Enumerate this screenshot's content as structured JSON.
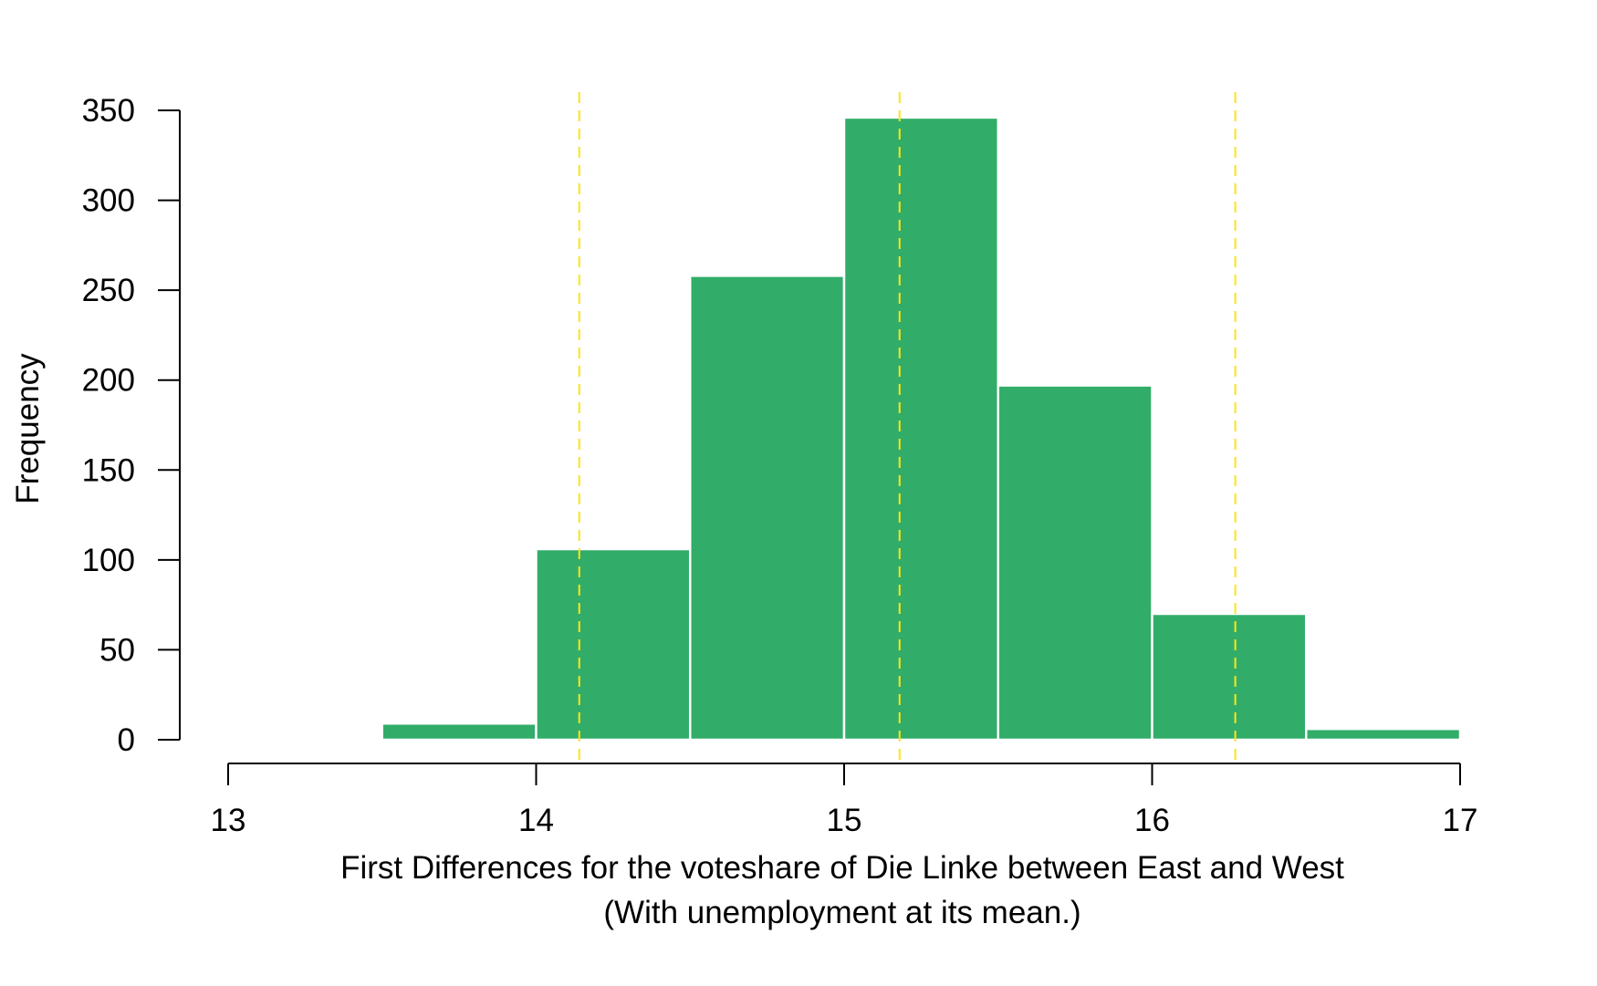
{
  "chart_data": {
    "type": "bar",
    "subtype": "histogram",
    "bins": [
      {
        "from": 13.5,
        "to": 14.0,
        "value": 9
      },
      {
        "from": 14.0,
        "to": 14.5,
        "value": 106
      },
      {
        "from": 14.5,
        "to": 15.0,
        "value": 258
      },
      {
        "from": 15.0,
        "to": 15.5,
        "value": 346
      },
      {
        "from": 15.5,
        "to": 16.0,
        "value": 197
      },
      {
        "from": 16.0,
        "to": 16.5,
        "value": 70
      },
      {
        "from": 16.5,
        "to": 17.0,
        "value": 6
      }
    ],
    "xlabel": "First Differences for the voteshare of Die Linke between East and West",
    "xlabel_line2": "(With unemployment at its mean.)",
    "ylabel": "Frequency",
    "xlim": [
      13,
      17
    ],
    "ylim": [
      0,
      350
    ],
    "xticks": [
      13,
      14,
      15,
      16,
      17
    ],
    "yticks": [
      0,
      50,
      100,
      150,
      200,
      250,
      300,
      350
    ],
    "reference_lines": [
      14.14,
      15.18,
      16.27
    ],
    "grid": false,
    "colors": {
      "bar": "#31ad69",
      "bar_border": "#ffffff",
      "reference_line": "#ffe414",
      "axis": "#000000"
    }
  }
}
